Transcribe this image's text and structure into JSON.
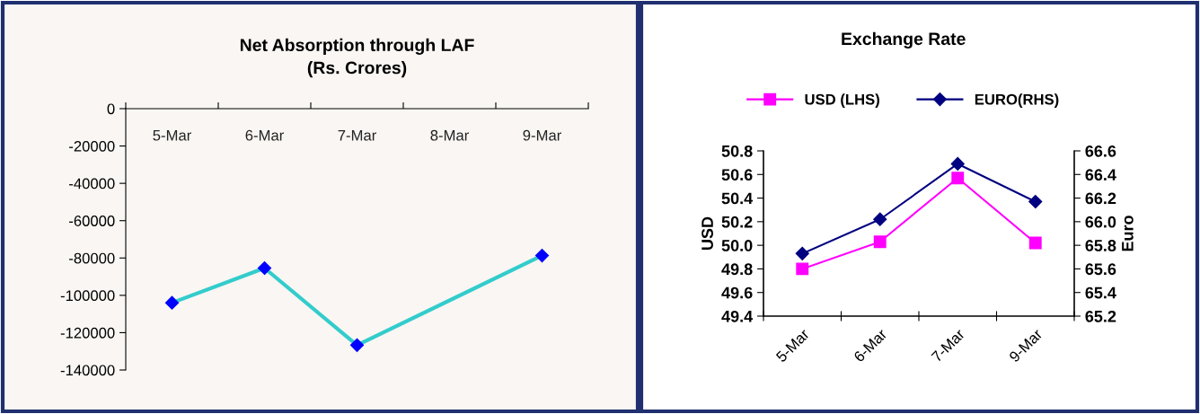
{
  "chart_data": [
    {
      "type": "line",
      "title": "Net Absorption through LAF\n(Rs. Crores)",
      "categories": [
        "5-Mar",
        "6-Mar",
        "7-Mar",
        "8-Mar",
        "9-Mar"
      ],
      "series": [
        {
          "color": "#33cccc",
          "values": [
            -104000,
            -85400,
            -126700,
            null,
            -78700
          ]
        }
      ],
      "ylim": [
        -140000,
        0
      ],
      "yticks": [
        -140000,
        -120000,
        -100000,
        -80000,
        -60000,
        -40000,
        -20000,
        0
      ],
      "marker": "diamond",
      "grid": false,
      "legend": false
    },
    {
      "type": "line",
      "title": "Exchange Rate",
      "categories": [
        "5-Mar",
        "6-Mar",
        "7-Mar",
        "9-Mar"
      ],
      "ylabel": "USD",
      "y2label": "Euro",
      "series": [
        {
          "name": "USD (LHS)",
          "color": "#ff00ff",
          "marker": "square",
          "values": [
            49.8,
            50.03,
            50.57,
            50.02
          ]
        },
        {
          "name": "EURO(RHS)",
          "color": "#000080",
          "marker": "diamond",
          "axis": "y2",
          "values": [
            65.73,
            66.02,
            66.49,
            66.17
          ]
        }
      ],
      "ylim": [
        49.4,
        50.8
      ],
      "yticks": [
        {
          "value": 49.4,
          "label": "49.4"
        },
        {
          "value": 49.6,
          "label": "49.6"
        },
        {
          "value": 49.8,
          "label": "49.8"
        },
        {
          "value": 50.0,
          "label": "50.0"
        },
        {
          "value": 50.2,
          "label": "50.2"
        },
        {
          "value": 50.4,
          "label": "50.4"
        },
        {
          "value": 50.6,
          "label": "50.6"
        },
        {
          "value": 50.8,
          "label": "50.8"
        }
      ],
      "y2lim": [
        65.2,
        66.6
      ],
      "y2ticks": [
        {
          "value": 65.2,
          "label": "65.2"
        },
        {
          "value": 65.4,
          "label": "65.4"
        },
        {
          "value": 65.6,
          "label": "65.6"
        },
        {
          "value": 65.8,
          "label": "65.8"
        },
        {
          "value": 66.0,
          "label": "66.0"
        },
        {
          "value": 66.2,
          "label": "66.2"
        },
        {
          "value": 66.4,
          "label": "66.4"
        },
        {
          "value": 66.6,
          "label": "66.6"
        }
      ],
      "grid": false,
      "legend": "top"
    }
  ]
}
